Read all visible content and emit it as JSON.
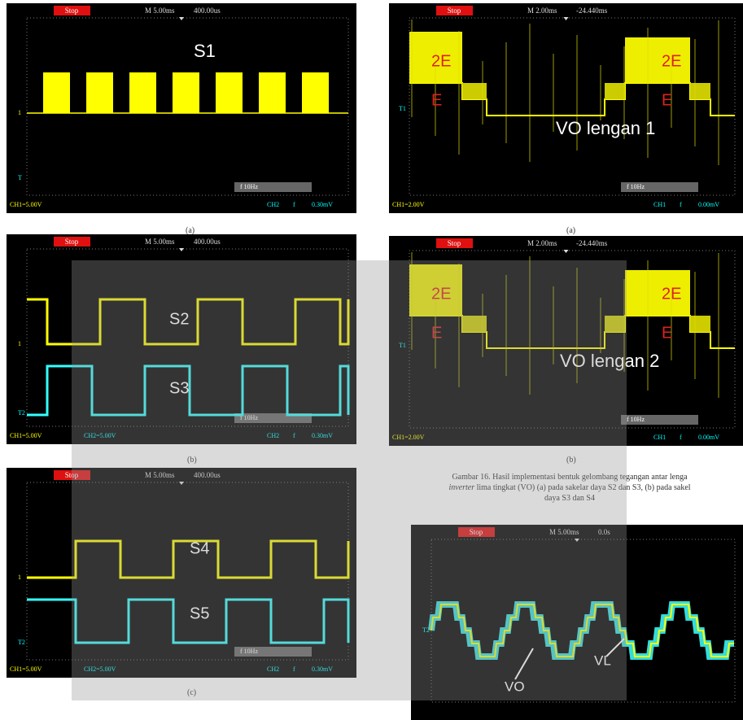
{
  "panels": [
    {
      "status": "Stop",
      "timebase": "M 5.00ms",
      "trigger": "400.00us",
      "markers": [
        "1",
        "T"
      ],
      "labels": [
        "S1"
      ],
      "footer": [
        "CH1=5.00V",
        "CH2",
        "f",
        "0.30mV"
      ],
      "frequency": "f 10Hz",
      "caption": "(a)"
    },
    {
      "status": "Stop",
      "timebase": "M 5.00ms",
      "trigger": "400.00us",
      "markers": [
        "1",
        "T2"
      ],
      "labels": [
        "S2",
        "S3"
      ],
      "footer": [
        "CH1=5.00V",
        "CH2=5.00V",
        "CH2",
        "f",
        "0.30mV"
      ],
      "frequency": "f 10Hz",
      "caption": "(b)"
    },
    {
      "status": "Stop",
      "timebase": "M 5.00ms",
      "trigger": "400.00us",
      "markers": [
        "1",
        "T2"
      ],
      "labels": [
        "S4",
        "S5"
      ],
      "footer": [
        "CH1=5.00V",
        "CH2=5.00V",
        "CH2",
        "f",
        "0.30mV"
      ],
      "frequency": "f 10Hz",
      "caption": "(c)"
    },
    {
      "status": "Stop",
      "timebase": "M 2.00ms",
      "trigger": "-24.440ms",
      "markers": [
        "T1"
      ],
      "labels": [
        "2E",
        "2E",
        "E",
        "E",
        "VO lengan 1"
      ],
      "footer": [
        "CH1=2.00V",
        "CH1",
        "f",
        "0.00mV"
      ],
      "frequency": "f 10Hz",
      "caption": "(a)"
    },
    {
      "status": "Stop",
      "timebase": "M 2.00ms",
      "trigger": "-24.440ms",
      "markers": [
        "T1"
      ],
      "labels": [
        "2E",
        "2E",
        "E",
        "E",
        "VO lengan 2"
      ],
      "footer": [
        "CH1=2.00V",
        "CH1",
        "f",
        "0.00mV"
      ],
      "frequency": "f 10Hz",
      "caption": "(b)"
    },
    {
      "status": "Stop",
      "timebase": "M 5.00ms",
      "trigger": "0.0s",
      "markers": [
        "T2"
      ],
      "labels": [
        "VO",
        "VL"
      ],
      "footer": [],
      "frequency": "",
      "caption": ""
    }
  ],
  "figure_caption": {
    "line1": "Gambar 16.  Hasil implementasi bentuk gelombang tegangan antar lenga",
    "line2_italic": "inverter",
    "line2_rest": " lima tingkat (VO) (a) pada sakelar daya S2 dan S3, (b) pada sakel",
    "line3": "daya S3 dan S4"
  }
}
